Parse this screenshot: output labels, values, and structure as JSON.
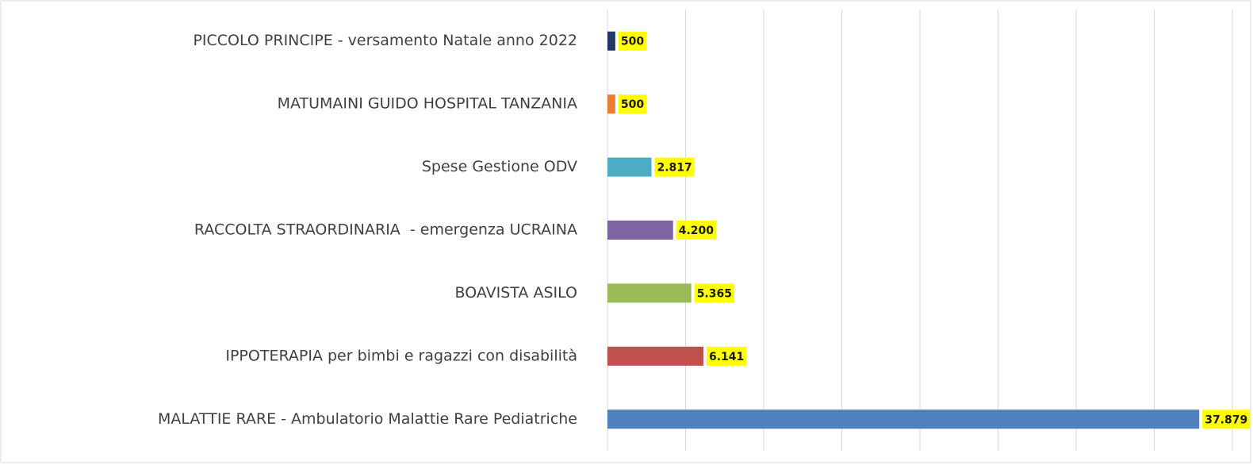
{
  "chart_data": {
    "type": "barh",
    "categories": [
      "PICCOLO PRINCIPE - versamento Natale anno 2022",
      "MATUMAINI GUIDO HOSPITAL TANZANIA",
      "Spese Gestione ODV",
      "RACCOLTA STRAORDINARIA  - emergenza UCRAINA",
      "BOAVISTA ASILO",
      "IPPOTERAPIA per bimbi e ragazzi con disabilità",
      "MALATTIE RARE - Ambulatorio Malattie Rare Pediatriche"
    ],
    "values": [
      500,
      500,
      2817,
      4200,
      5365,
      6141,
      37879
    ],
    "value_labels": [
      "500",
      "500",
      "2.817",
      "4.200",
      "5.365",
      "6.141",
      "37.879"
    ],
    "colors": [
      "#1f3864",
      "#ed7d31",
      "#4bacc6",
      "#8064a2",
      "#9bbb59",
      "#c0504d",
      "#4f81bd"
    ],
    "xlim": [
      0,
      40000
    ],
    "xticks": [
      0,
      5000,
      10000,
      15000,
      20000,
      25000,
      30000,
      35000,
      40000
    ],
    "grid": true
  }
}
